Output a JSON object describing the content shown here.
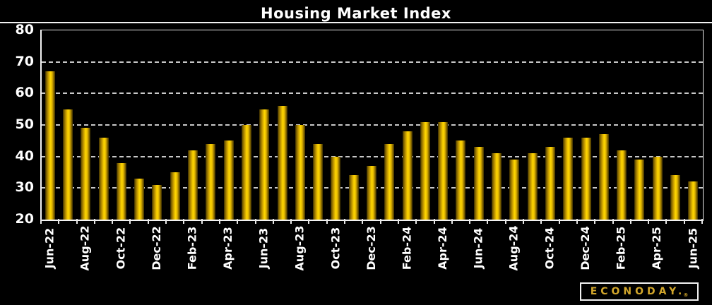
{
  "title": "Housing Market Index",
  "logo": {
    "text": "ECONODAY.",
    "registered": "®"
  },
  "chart_data": {
    "type": "bar",
    "title": "Housing Market Index",
    "x": [
      "Jun-22",
      "Jul-22",
      "Aug-22",
      "Sep-22",
      "Oct-22",
      "Nov-22",
      "Dec-22",
      "Jan-23",
      "Feb-23",
      "Mar-23",
      "Apr-23",
      "May-23",
      "Jun-23",
      "Jul-23",
      "Aug-23",
      "Sep-23",
      "Oct-23",
      "Nov-23",
      "Dec-23",
      "Jan-24",
      "Feb-24",
      "Mar-24",
      "Apr-24",
      "May-24",
      "Jun-24",
      "Jul-24",
      "Aug-24",
      "Sep-24",
      "Oct-24",
      "Nov-24",
      "Dec-24",
      "Jan-25",
      "Feb-25",
      "Mar-25",
      "Apr-25",
      "May-25",
      "Jun-25"
    ],
    "values": [
      67,
      55,
      49,
      46,
      38,
      33,
      31,
      35,
      42,
      44,
      45,
      50,
      55,
      56,
      50,
      44,
      40,
      34,
      37,
      44,
      48,
      51,
      51,
      45,
      43,
      41,
      39,
      41,
      43,
      46,
      46,
      47,
      42,
      39,
      40,
      34,
      32
    ],
    "x_tick_labels": [
      "Jun-22",
      "Aug-22",
      "Oct-22",
      "Dec-22",
      "Feb-23",
      "Apr-23",
      "Jun-23",
      "Aug-23",
      "Oct-23",
      "Dec-23",
      "Feb-24",
      "Apr-24",
      "Jun-24",
      "Aug-24",
      "Oct-24",
      "Dec-24",
      "Feb-25",
      "Apr-25",
      "Jun-25"
    ],
    "x_label_every": 2,
    "xlabel": "",
    "ylabel": "",
    "ylim": [
      20,
      80
    ],
    "y_ticks": [
      20,
      30,
      40,
      50,
      60,
      70,
      80
    ],
    "grid": "horizontal-dashed",
    "legend": "none",
    "bar_color": "#ffd700",
    "background": "#000000",
    "text_color": "#ffffff"
  }
}
